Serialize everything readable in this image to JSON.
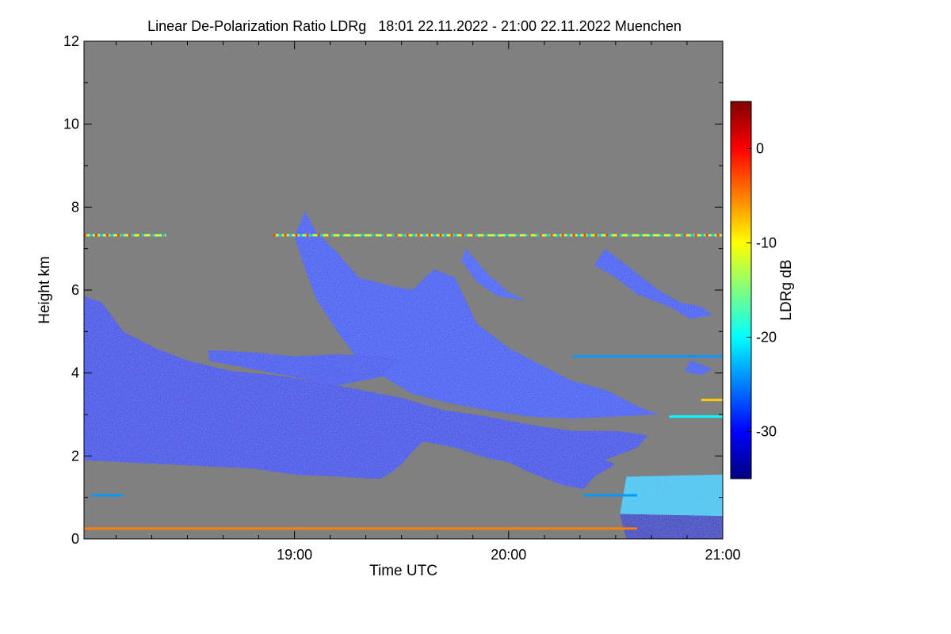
{
  "chart_data": {
    "type": "heatmap",
    "title": "Linear De-Polarization Ratio LDRg   18:01 22.11.2022 - 21:00 22.11.2022 Muenchen",
    "xlabel": "Time UTC",
    "ylabel": "Height km",
    "x_range_hours": [
      18.017,
      21.0
    ],
    "y_range_km": [
      0,
      12
    ],
    "x_major_ticks": [
      {
        "value": 19.0,
        "label": "19:00"
      },
      {
        "value": 20.0,
        "label": "20:00"
      },
      {
        "value": 21.0,
        "label": "21:00"
      }
    ],
    "x_minor_ticks": [
      18.167,
      18.333,
      18.5,
      18.667,
      18.833,
      19.167,
      19.333,
      19.5,
      19.667,
      19.833,
      20.167,
      20.333,
      20.5,
      20.667,
      20.833
    ],
    "y_major_ticks": [
      {
        "value": 0,
        "label": "0"
      },
      {
        "value": 2,
        "label": "2"
      },
      {
        "value": 4,
        "label": "4"
      },
      {
        "value": 6,
        "label": "6"
      },
      {
        "value": 8,
        "label": "8"
      },
      {
        "value": 10,
        "label": "10"
      },
      {
        "value": 12,
        "label": "12"
      }
    ],
    "background_color": "#808080",
    "colorbar": {
      "label": "LDRg dB",
      "range_db": [
        -35,
        5
      ],
      "ticks": [
        {
          "value": 0,
          "label": "0"
        },
        {
          "value": -10,
          "label": "-10"
        },
        {
          "value": -20,
          "label": "-20"
        },
        {
          "value": -30,
          "label": "-30"
        }
      ],
      "colors": [
        "#00007f",
        "#0000ff",
        "#007fff",
        "#00ffff",
        "#7fff7f",
        "#ffff00",
        "#ff7f00",
        "#ff0000",
        "#7f0000"
      ]
    },
    "regions": [
      {
        "name": "low-cloud-layer",
        "ldr_db": -32,
        "color": "#1a32e6",
        "polygon": [
          [
            18.017,
            5.85
          ],
          [
            18.1,
            5.7
          ],
          [
            18.2,
            5.0
          ],
          [
            18.35,
            4.6
          ],
          [
            18.5,
            4.3
          ],
          [
            18.7,
            4.05
          ],
          [
            18.9,
            3.95
          ],
          [
            19.1,
            3.8
          ],
          [
            19.3,
            3.6
          ],
          [
            19.5,
            3.4
          ],
          [
            19.7,
            3.1
          ],
          [
            19.9,
            2.95
          ],
          [
            20.1,
            2.75
          ],
          [
            20.3,
            2.6
          ],
          [
            20.5,
            2.6
          ],
          [
            20.65,
            2.5
          ],
          [
            20.6,
            2.2
          ],
          [
            20.5,
            2.0
          ],
          [
            20.45,
            1.9
          ],
          [
            20.5,
            1.8
          ],
          [
            20.4,
            1.5
          ],
          [
            20.35,
            1.2
          ],
          [
            20.25,
            1.3
          ],
          [
            20.1,
            1.6
          ],
          [
            20.0,
            1.85
          ],
          [
            19.9,
            1.95
          ],
          [
            19.75,
            2.2
          ],
          [
            19.6,
            2.35
          ],
          [
            19.55,
            2.1
          ],
          [
            19.5,
            1.8
          ],
          [
            19.45,
            1.6
          ],
          [
            19.4,
            1.45
          ],
          [
            19.2,
            1.5
          ],
          [
            19.0,
            1.55
          ],
          [
            18.8,
            1.7
          ],
          [
            18.6,
            1.75
          ],
          [
            18.4,
            1.8
          ],
          [
            18.2,
            1.85
          ],
          [
            18.017,
            1.9
          ]
        ]
      },
      {
        "name": "upper-cloud-plume",
        "ldr_db": -30,
        "color": "#2246f0",
        "polygon": [
          [
            19.05,
            7.9
          ],
          [
            19.1,
            7.4
          ],
          [
            19.2,
            6.9
          ],
          [
            19.3,
            6.3
          ],
          [
            19.45,
            6.1
          ],
          [
            19.55,
            6.0
          ],
          [
            19.65,
            6.5
          ],
          [
            19.75,
            6.3
          ],
          [
            19.85,
            5.2
          ],
          [
            20.0,
            4.6
          ],
          [
            20.15,
            4.2
          ],
          [
            20.3,
            3.8
          ],
          [
            20.45,
            3.6
          ],
          [
            20.6,
            3.2
          ],
          [
            20.7,
            3.0
          ],
          [
            20.5,
            2.95
          ],
          [
            20.3,
            2.9
          ],
          [
            20.1,
            2.95
          ],
          [
            19.9,
            3.1
          ],
          [
            19.7,
            3.3
          ],
          [
            19.55,
            3.5
          ],
          [
            19.45,
            3.8
          ],
          [
            19.3,
            4.3
          ],
          [
            19.2,
            5.0
          ],
          [
            19.1,
            5.8
          ],
          [
            19.05,
            6.5
          ],
          [
            19.0,
            7.3
          ]
        ]
      },
      {
        "name": "mid-cloud-shelf",
        "ldr_db": -31,
        "color": "#1e3ceb",
        "polygon": [
          [
            18.6,
            4.55
          ],
          [
            18.8,
            4.5
          ],
          [
            19.0,
            4.4
          ],
          [
            19.2,
            4.45
          ],
          [
            19.4,
            4.4
          ],
          [
            19.5,
            4.3
          ],
          [
            19.4,
            3.9
          ],
          [
            19.2,
            3.7
          ],
          [
            19.0,
            3.9
          ],
          [
            18.8,
            4.1
          ],
          [
            18.6,
            4.3
          ]
        ]
      },
      {
        "name": "streak-cirrus-1",
        "ldr_db": -29,
        "color": "#2850f5",
        "polygon": [
          [
            19.8,
            7.0
          ],
          [
            19.9,
            6.4
          ],
          [
            20.0,
            5.95
          ],
          [
            20.08,
            5.75
          ],
          [
            19.95,
            5.85
          ],
          [
            19.85,
            6.2
          ],
          [
            19.78,
            6.7
          ]
        ]
      },
      {
        "name": "streak-cirrus-2",
        "ldr_db": -30,
        "color": "#2246f0",
        "polygon": [
          [
            20.45,
            7.0
          ],
          [
            20.55,
            6.6
          ],
          [
            20.7,
            6.0
          ],
          [
            20.8,
            5.7
          ],
          [
            20.9,
            5.6
          ],
          [
            20.95,
            5.4
          ],
          [
            20.85,
            5.3
          ],
          [
            20.75,
            5.6
          ],
          [
            20.6,
            5.9
          ],
          [
            20.5,
            6.3
          ],
          [
            20.4,
            6.6
          ]
        ]
      },
      {
        "name": "streak-cirrus-3",
        "ldr_db": -30,
        "color": "#2246f0",
        "polygon": [
          [
            20.85,
            4.3
          ],
          [
            20.95,
            4.1
          ],
          [
            20.9,
            3.95
          ],
          [
            20.82,
            4.05
          ]
        ]
      },
      {
        "name": "low-boundary-layer",
        "ldr_db": -22,
        "color": "#24c8f0",
        "polygon": [
          [
            20.55,
            1.5
          ],
          [
            21.0,
            1.55
          ],
          [
            21.0,
            0.55
          ],
          [
            20.52,
            0.6
          ]
        ]
      },
      {
        "name": "surface-layer",
        "ldr_db": -33,
        "color": "#1010b8",
        "polygon": [
          [
            20.52,
            0.6
          ],
          [
            21.0,
            0.55
          ],
          [
            21.0,
            0.0
          ],
          [
            20.55,
            0.0
          ]
        ]
      }
    ],
    "bands": [
      {
        "name": "band-7.3km",
        "height_km": 7.32,
        "ldr_db": -12,
        "segments": [
          [
            18.017,
            18.4
          ],
          [
            18.9,
            21.0
          ]
        ]
      },
      {
        "name": "band-0.25km",
        "height_km": 0.25,
        "ldr_db": -5,
        "segments": [
          [
            18.017,
            20.6
          ]
        ]
      },
      {
        "name": "band-1.05km",
        "height_km": 1.05,
        "ldr_db": -24,
        "segments": [
          [
            18.05,
            18.2
          ],
          [
            20.35,
            20.6
          ]
        ]
      },
      {
        "name": "band-4.4km",
        "height_km": 4.4,
        "ldr_db": -24,
        "segments": [
          [
            20.3,
            21.0
          ]
        ]
      },
      {
        "name": "band-2.95km",
        "height_km": 2.95,
        "ldr_db": -20,
        "segments": [
          [
            20.75,
            21.0
          ]
        ]
      },
      {
        "name": "band-3.35km",
        "height_km": 3.35,
        "ldr_db": -8,
        "segments": [
          [
            20.9,
            21.0
          ]
        ]
      }
    ]
  }
}
